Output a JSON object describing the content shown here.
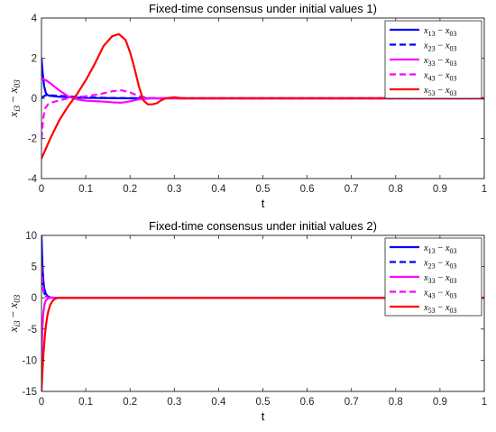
{
  "chart_data": [
    {
      "type": "line",
      "title": "Fixed-time consensus under initial values 1)",
      "xlabel": "t",
      "ylabel": "x_i3 − x_03",
      "xlim": [
        0,
        1
      ],
      "ylim": [
        -4,
        4
      ],
      "xticks": [
        "0",
        "0.1",
        "0.2",
        "0.3",
        "0.4",
        "0.5",
        "0.6",
        "0.7",
        "0.8",
        "0.9",
        "1"
      ],
      "yticks": [
        "-4",
        "-2",
        "0",
        "2",
        "4"
      ],
      "grid": false,
      "legend_position": "top-right",
      "series": [
        {
          "name": "x13 − x03",
          "color": "#0000ff",
          "style": "solid",
          "x": [
            0,
            0.003,
            0.006,
            0.01,
            0.015,
            0.02,
            0.03,
            0.04,
            0.06,
            0.08,
            0.1,
            0.15,
            0.2,
            0.25,
            0.3,
            1.0
          ],
          "y": [
            2.0,
            1.2,
            0.6,
            0.25,
            0.15,
            0.12,
            0.1,
            0.08,
            0.06,
            0.04,
            0.02,
            0.01,
            0.0,
            0.0,
            0.0,
            0.0
          ]
        },
        {
          "name": "x23 − x03",
          "color": "#0000ff",
          "style": "dashed",
          "x": [
            0,
            0.005,
            0.01,
            0.02,
            0.04,
            0.06,
            0.08,
            0.1,
            0.15,
            0.2,
            0.3,
            1.0
          ],
          "y": [
            0.0,
            0.1,
            0.15,
            0.15,
            0.12,
            0.1,
            0.07,
            0.05,
            0.02,
            0.01,
            0.0,
            0.0
          ]
        },
        {
          "name": "x33 − x03",
          "color": "#ff00ff",
          "style": "solid",
          "x": [
            0,
            0.01,
            0.02,
            0.04,
            0.06,
            0.08,
            0.1,
            0.13,
            0.16,
            0.18,
            0.2,
            0.22,
            0.25,
            0.3,
            1.0
          ],
          "y": [
            1.0,
            0.9,
            0.75,
            0.4,
            0.1,
            -0.05,
            -0.12,
            -0.15,
            -0.2,
            -0.22,
            -0.15,
            -0.05,
            0.0,
            0.0,
            0.0
          ]
        },
        {
          "name": "x43 − x03",
          "color": "#ff00ff",
          "style": "dashed",
          "x": [
            0,
            0.004,
            0.008,
            0.015,
            0.025,
            0.04,
            0.06,
            0.08,
            0.1,
            0.13,
            0.16,
            0.18,
            0.2,
            0.22,
            0.25,
            0.3,
            1.0
          ],
          "y": [
            -2.0,
            -1.0,
            -0.5,
            -0.3,
            -0.2,
            -0.1,
            0.0,
            0.05,
            0.1,
            0.2,
            0.35,
            0.4,
            0.3,
            0.1,
            0.0,
            0.0,
            0.0
          ]
        },
        {
          "name": "x53 − x03",
          "color": "#ff0000",
          "style": "solid",
          "x": [
            0,
            0.02,
            0.04,
            0.06,
            0.08,
            0.1,
            0.12,
            0.14,
            0.16,
            0.175,
            0.19,
            0.2,
            0.21,
            0.22,
            0.23,
            0.24,
            0.25,
            0.26,
            0.27,
            0.28,
            0.3,
            0.32,
            1.0
          ],
          "y": [
            -3.0,
            -2.0,
            -1.1,
            -0.4,
            0.2,
            0.9,
            1.7,
            2.6,
            3.1,
            3.2,
            2.9,
            2.3,
            1.5,
            0.6,
            -0.1,
            -0.3,
            -0.3,
            -0.25,
            -0.1,
            0.0,
            0.05,
            0.0,
            0.0
          ]
        }
      ]
    },
    {
      "type": "line",
      "title": "Fixed-time consensus under initial values 2)",
      "xlabel": "t",
      "ylabel": "x_i3 − x_03",
      "xlim": [
        0,
        1
      ],
      "ylim": [
        -15,
        10
      ],
      "xticks": [
        "0",
        "0.1",
        "0.2",
        "0.3",
        "0.4",
        "0.5",
        "0.6",
        "0.7",
        "0.8",
        "0.9",
        "1"
      ],
      "yticks": [
        "-15",
        "-10",
        "-5",
        "0",
        "5",
        "10"
      ],
      "grid": false,
      "legend_position": "top-right",
      "series": [
        {
          "name": "x13 − x03",
          "color": "#0000ff",
          "style": "solid",
          "x": [
            0,
            0.002,
            0.004,
            0.006,
            0.01,
            0.015,
            0.02,
            0.03,
            0.05,
            1.0
          ],
          "y": [
            10.0,
            5.5,
            3.0,
            1.6,
            0.6,
            0.2,
            0.05,
            0.0,
            0.0,
            0.0
          ]
        },
        {
          "name": "x23 − x03",
          "color": "#0000ff",
          "style": "dashed",
          "x": [
            0,
            0.003,
            0.006,
            0.01,
            0.015,
            0.02,
            0.03,
            0.05,
            1.0
          ],
          "y": [
            3.0,
            1.6,
            0.8,
            0.3,
            0.1,
            0.05,
            0.0,
            0.0,
            0.0
          ]
        },
        {
          "name": "x33 − x03",
          "color": "#ff00ff",
          "style": "solid",
          "x": [
            0,
            0.002,
            0.004,
            0.007,
            0.01,
            0.015,
            0.02,
            0.03,
            0.05,
            1.0
          ],
          "y": [
            -10.0,
            -5.0,
            -2.5,
            -1.0,
            -0.4,
            -0.1,
            0.0,
            0.0,
            0.0,
            0.0
          ]
        },
        {
          "name": "x43 − x03",
          "color": "#ff00ff",
          "style": "dashed",
          "x": [
            0,
            0.002,
            0.004,
            0.007,
            0.01,
            0.015,
            0.02,
            0.03,
            0.05,
            1.0
          ],
          "y": [
            5.0,
            2.5,
            1.2,
            0.5,
            0.2,
            0.05,
            0.0,
            0.0,
            0.0,
            0.0
          ]
        },
        {
          "name": "x53 − x03",
          "color": "#ff0000",
          "style": "solid",
          "x": [
            0,
            0.002,
            0.004,
            0.006,
            0.008,
            0.01,
            0.013,
            0.016,
            0.02,
            0.025,
            0.03,
            0.035,
            0.04,
            0.05,
            1.0
          ],
          "y": [
            -15.0,
            -12.0,
            -9.5,
            -7.5,
            -5.8,
            -4.5,
            -3.0,
            -2.0,
            -1.1,
            -0.5,
            -0.2,
            -0.05,
            0.0,
            0.0,
            0.0
          ]
        }
      ]
    }
  ]
}
